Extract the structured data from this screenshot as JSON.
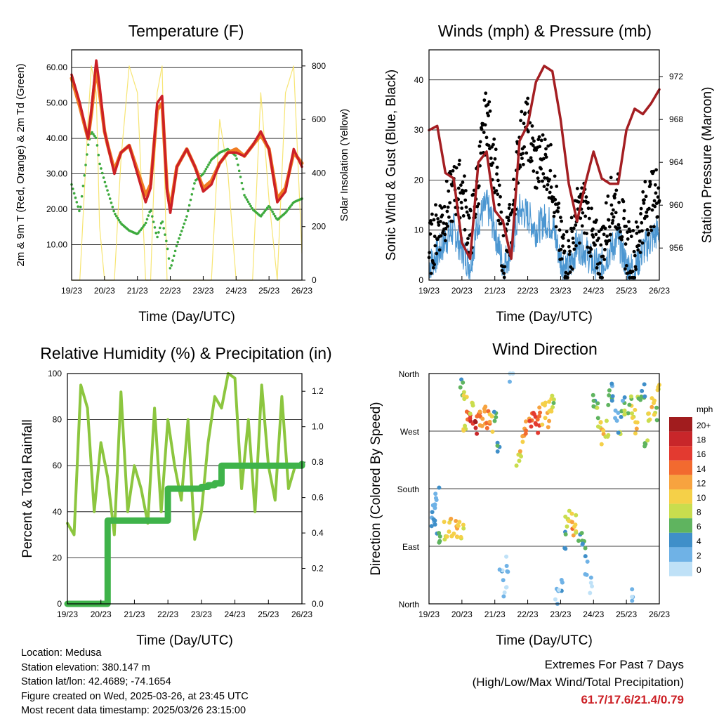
{
  "x_tick_labels": [
    "19/23",
    "20/23",
    "21/23",
    "22/23",
    "23/23",
    "24/23",
    "25/23",
    "26/23"
  ],
  "info": {
    "location": "Location: Medusa",
    "elevation": "Station elevation: 380.147 m",
    "latlon": "Station lat/lon: 42.4689; -74.1654",
    "created": "Figure created on Wed, 2025-03-26, at 23:45 UTC",
    "recent": "Most recent data timestamp: 2025/03/26 23:15:00"
  },
  "extremes": {
    "title": "Extremes For Past 7 Days",
    "subtitle": "(High/Low/Max Wind/Total Precipitation)",
    "values": "61.7/17.6/21.4/0.79"
  },
  "colors": {
    "temp_2m": "#cc2026",
    "temp_9m": "#f07c22",
    "dewpoint": "#3daa3d",
    "solar": "#f6e15a",
    "wind": "#4b96d1",
    "gust": "#000000",
    "pressure": "#a41e22",
    "rh": "#8cc63f",
    "precip": "#3fb34a"
  },
  "chart_data": [
    {
      "type": "line",
      "title": "Temperature (F)",
      "xlabel": "Time (Day/UTC)",
      "ylabel": "2m & 9m T (Red, Orange) & 2m Td (Green)",
      "y2label": "Solar Insolation (Yellow)",
      "ylim": [
        0,
        65
      ],
      "y2lim": [
        0,
        860
      ],
      "y_ticks": [
        "10.00",
        "20.00",
        "30.00",
        "40.00",
        "50.00",
        "60.00"
      ],
      "y2_ticks": [
        "0",
        "200",
        "400",
        "600",
        "800"
      ],
      "x": [
        0,
        0.25,
        0.5,
        0.6,
        0.75,
        0.85,
        1.0,
        1.1,
        1.3,
        1.5,
        1.75,
        2.0,
        2.25,
        2.4,
        2.6,
        2.75,
        2.9,
        3.0,
        3.2,
        3.5,
        3.75,
        4.0,
        4.25,
        4.5,
        4.75,
        5.0,
        5.25,
        5.5,
        5.75,
        6.0,
        6.25,
        6.5,
        6.75,
        7.0
      ],
      "series": [
        {
          "name": "2m T",
          "values": [
            58,
            50,
            40,
            48,
            62,
            55,
            42,
            38,
            30,
            36,
            38,
            30,
            22,
            26,
            50,
            52,
            25,
            19,
            32,
            37,
            32,
            25,
            27,
            33,
            36,
            36,
            35,
            38,
            42,
            37,
            22,
            25,
            37,
            32
          ]
        },
        {
          "name": "9m T",
          "values": [
            57,
            49,
            40,
            47,
            60,
            53,
            42,
            38,
            31,
            36,
            38,
            31,
            24,
            27,
            48,
            50,
            26,
            20,
            32,
            37,
            32,
            26,
            28,
            33,
            36,
            37,
            35,
            38,
            41,
            37,
            23,
            26,
            36,
            33
          ]
        },
        {
          "name": "2m Td",
          "values": [
            27,
            19,
            38,
            42,
            40,
            33,
            28,
            25,
            19,
            16,
            14,
            13,
            16,
            20,
            12,
            17,
            10,
            3,
            10,
            18,
            28,
            30,
            34,
            36,
            37,
            35,
            24,
            20,
            18,
            21,
            17,
            19,
            22,
            23
          ]
        },
        {
          "name": "Solar Insolation",
          "values": [
            0,
            0,
            600,
            800,
            700,
            200,
            0,
            0,
            0,
            450,
            800,
            700,
            0,
            0,
            700,
            800,
            0,
            0,
            0,
            0,
            0,
            0,
            0,
            600,
            400,
            0,
            0,
            0,
            700,
            300,
            0,
            700,
            800,
            100
          ]
        }
      ]
    },
    {
      "type": "scatter",
      "title": "Winds (mph) & Pressure (mb)",
      "xlabel": "Time (Day/UTC)",
      "ylabel": "Sonic Wind & Gust (Blue, Black)",
      "y2label": "Station Pressure (Maroon)",
      "ylim": [
        0,
        46
      ],
      "y2lim": [
        953,
        974.5
      ],
      "y_ticks": [
        "0",
        "10",
        "20",
        "30",
        "40"
      ],
      "y2_ticks": [
        "956",
        "960",
        "964",
        "968",
        "972"
      ],
      "x": [
        0,
        0.25,
        0.5,
        0.75,
        1.0,
        1.25,
        1.5,
        1.75,
        2.0,
        2.25,
        2.5,
        2.75,
        3.0,
        3.25,
        3.5,
        3.75,
        4.0,
        4.25,
        4.5,
        4.75,
        5.0,
        5.25,
        5.5,
        5.75,
        6.0,
        6.25,
        6.5,
        6.75,
        7.0
      ],
      "series": [
        {
          "name": "Sonic Wind",
          "values": [
            3,
            5,
            8,
            10,
            6,
            3,
            12,
            15,
            10,
            3,
            6,
            14,
            13,
            10,
            12,
            11,
            4,
            2,
            7,
            6,
            3,
            3,
            6,
            8,
            3,
            2,
            6,
            8,
            10
          ]
        },
        {
          "name": "Gust",
          "values": [
            5,
            10,
            13,
            17,
            18,
            8,
            20,
            33,
            22,
            5,
            10,
            27,
            30,
            22,
            24,
            20,
            6,
            4,
            12,
            14,
            6,
            5,
            14,
            15,
            6,
            4,
            13,
            15,
            18
          ]
        },
        {
          "name": "Pressure",
          "values": [
            967,
            967.4,
            963,
            962.5,
            956.5,
            955,
            964,
            965,
            959.5,
            958.5,
            955,
            966,
            967.5,
            971.5,
            973,
            972.5,
            968,
            962,
            958.5,
            962,
            965,
            962.5,
            962,
            962,
            967,
            969,
            968.5,
            969.5,
            970.8
          ]
        }
      ]
    },
    {
      "type": "line",
      "title": "Relative Humidity (%) & Precipitation (in)",
      "xlabel": "Time (Day/UTC)",
      "ylabel": "Percent & Total Rainfall",
      "ylim": [
        0,
        100
      ],
      "y2lim": [
        0,
        1.3
      ],
      "y_ticks": [
        "0",
        "20",
        "40",
        "60",
        "80",
        "100"
      ],
      "y2_ticks": [
        "0.0",
        "0.2",
        "0.4",
        "0.6",
        "0.8",
        "1.0",
        "1.2"
      ],
      "x": [
        0,
        0.2,
        0.4,
        0.6,
        0.8,
        1.0,
        1.2,
        1.4,
        1.6,
        1.8,
        2.0,
        2.2,
        2.4,
        2.6,
        2.8,
        3.0,
        3.2,
        3.4,
        3.6,
        3.8,
        4.0,
        4.2,
        4.4,
        4.6,
        4.8,
        5.0,
        5.2,
        5.4,
        5.6,
        5.8,
        6.0,
        6.2,
        6.4,
        6.6,
        6.8,
        7.0
      ],
      "series": [
        {
          "name": "Relative Humidity",
          "values": [
            35,
            30,
            95,
            85,
            40,
            70,
            55,
            30,
            92,
            40,
            60,
            50,
            35,
            85,
            40,
            80,
            60,
            45,
            80,
            28,
            40,
            70,
            90,
            85,
            100,
            98,
            50,
            80,
            40,
            95,
            60,
            45,
            90,
            50,
            60,
            60
          ]
        },
        {
          "name": "Total Precipitation",
          "values": [
            0,
            0,
            0,
            0,
            0,
            0,
            0.47,
            0.47,
            0.47,
            0.47,
            0.47,
            0.47,
            0.47,
            0.47,
            0.47,
            0.65,
            0.65,
            0.65,
            0.65,
            0.65,
            0.66,
            0.67,
            0.68,
            0.78,
            0.78,
            0.78,
            0.78,
            0.78,
            0.78,
            0.78,
            0.78,
            0.78,
            0.78,
            0.78,
            0.78,
            0.79
          ]
        }
      ]
    },
    {
      "type": "scatter",
      "title": "Wind Direction",
      "xlabel": "Time (Day/UTC)",
      "ylabel": "Direction (Colored By Speed)",
      "y_ticks": [
        "North",
        "East",
        "South",
        "West",
        "North"
      ],
      "ylim": [
        0,
        360
      ],
      "legend_title": "mph",
      "legend_labels": [
        "20+",
        "18",
        "16",
        "14",
        "12",
        "10",
        "8",
        "6",
        "4",
        "2",
        "0"
      ],
      "legend_colors": [
        "#a11c1e",
        "#c8262a",
        "#e33a30",
        "#f26a2f",
        "#f7a33f",
        "#f5d048",
        "#c9dd4e",
        "#5fb45f",
        "#3f8fc9",
        "#6fb2e6",
        "#bfe1f7"
      ],
      "points": [
        [
          0.1,
          130,
          3
        ],
        [
          0.2,
          120,
          4
        ],
        [
          0.3,
          110,
          6
        ],
        [
          0.5,
          115,
          8
        ],
        [
          0.6,
          118,
          9
        ],
        [
          0.7,
          120,
          11
        ],
        [
          0.8,
          118,
          12
        ],
        [
          0.9,
          116,
          10
        ],
        [
          1.0,
          112,
          9
        ],
        [
          0.15,
          150,
          2
        ],
        [
          0.25,
          175,
          3
        ],
        [
          1.1,
          285,
          10
        ],
        [
          1.2,
          290,
          14
        ],
        [
          1.3,
          288,
          16
        ],
        [
          1.4,
          280,
          18
        ],
        [
          1.5,
          286,
          15
        ],
        [
          1.6,
          292,
          12
        ],
        [
          1.7,
          295,
          13
        ],
        [
          1.8,
          288,
          15
        ],
        [
          1.9,
          284,
          11
        ],
        [
          1.0,
          340,
          6
        ],
        [
          1.1,
          320,
          8
        ],
        [
          1.3,
          310,
          9
        ],
        [
          2.0,
          300,
          6
        ],
        [
          2.1,
          250,
          4
        ],
        [
          2.2,
          40,
          2
        ],
        [
          2.3,
          20,
          1
        ],
        [
          2.4,
          60,
          2
        ],
        [
          2.5,
          350,
          1
        ],
        [
          2.7,
          230,
          8
        ],
        [
          2.8,
          240,
          10
        ],
        [
          2.9,
          260,
          12
        ],
        [
          3.0,
          280,
          13
        ],
        [
          3.1,
          290,
          15
        ],
        [
          3.2,
          285,
          16
        ],
        [
          3.3,
          282,
          14
        ],
        [
          3.4,
          295,
          12
        ],
        [
          3.5,
          300,
          10
        ],
        [
          3.6,
          290,
          11
        ],
        [
          3.7,
          310,
          9
        ],
        [
          3.8,
          320,
          7
        ],
        [
          3.9,
          10,
          1
        ],
        [
          4.0,
          30,
          2
        ],
        [
          4.1,
          100,
          4
        ],
        [
          4.2,
          130,
          8
        ],
        [
          4.3,
          135,
          10
        ],
        [
          4.4,
          120,
          12
        ],
        [
          4.5,
          125,
          9
        ],
        [
          4.6,
          110,
          6
        ],
        [
          4.7,
          90,
          4
        ],
        [
          4.8,
          60,
          3
        ],
        [
          4.9,
          30,
          1
        ],
        [
          5.0,
          320,
          5
        ],
        [
          5.1,
          300,
          6
        ],
        [
          5.2,
          270,
          9
        ],
        [
          5.3,
          260,
          11
        ],
        [
          5.4,
          275,
          8
        ],
        [
          5.5,
          320,
          5
        ],
        [
          5.6,
          330,
          3
        ],
        [
          5.7,
          300,
          2
        ],
        [
          5.8,
          280,
          6
        ],
        [
          5.9,
          310,
          4
        ],
        [
          6.0,
          290,
          7
        ],
        [
          6.1,
          320,
          8
        ],
        [
          6.2,
          300,
          9
        ],
        [
          6.3,
          280,
          10
        ],
        [
          6.4,
          310,
          6
        ],
        [
          6.5,
          330,
          4
        ],
        [
          6.6,
          260,
          7
        ],
        [
          6.7,
          290,
          9
        ],
        [
          6.8,
          320,
          11
        ],
        [
          6.9,
          300,
          8
        ],
        [
          7.0,
          340,
          10
        ],
        [
          6.2,
          10,
          1
        ]
      ]
    }
  ]
}
